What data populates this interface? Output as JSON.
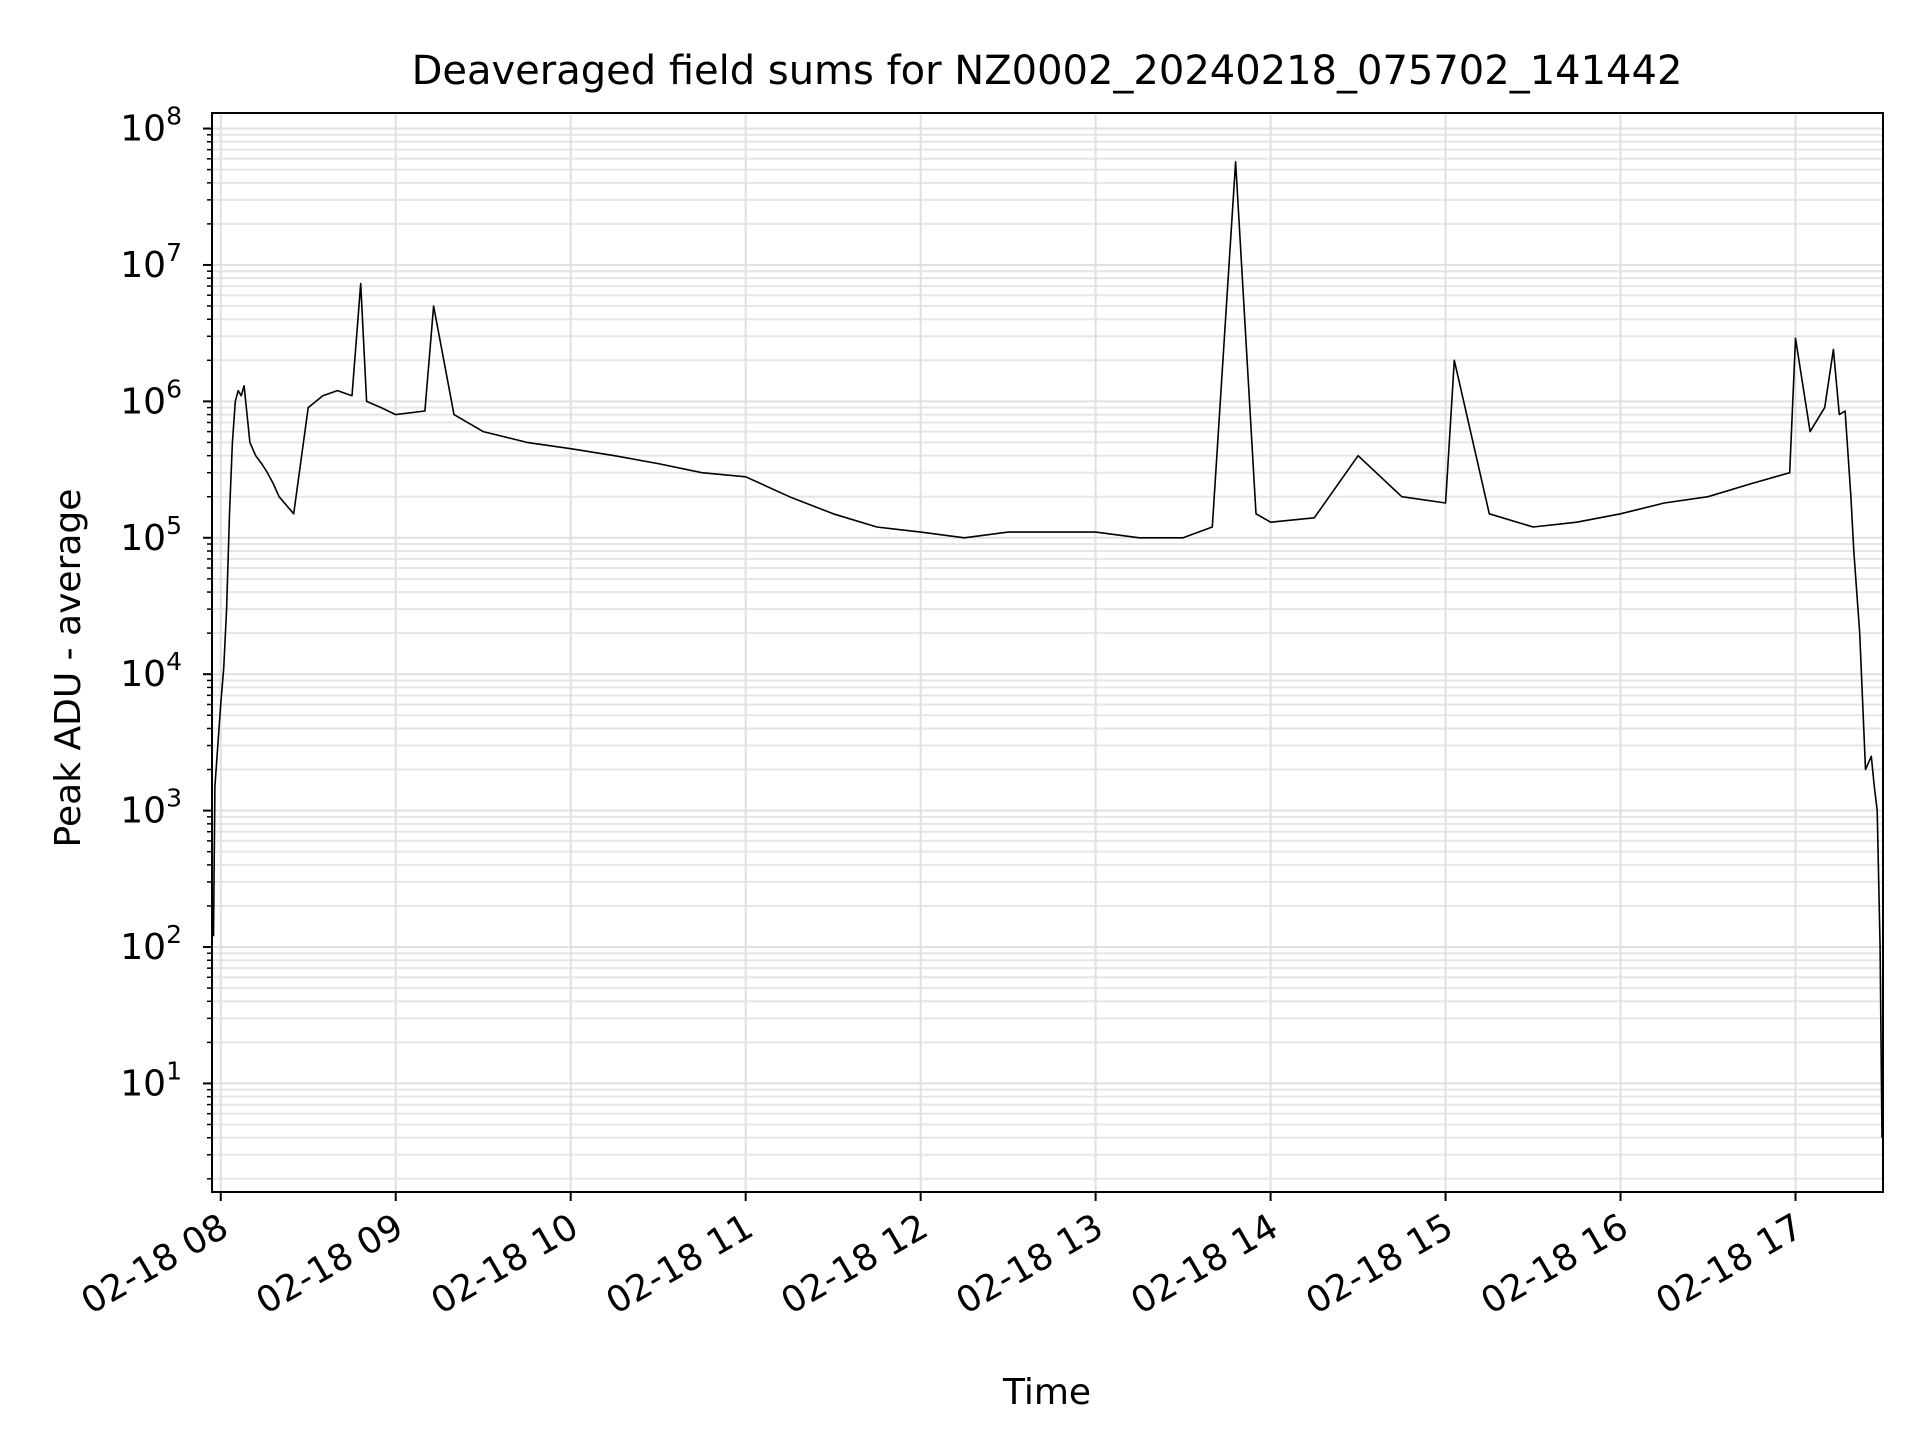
{
  "chart_data": {
    "type": "line",
    "title": "Deaveraged field sums for NZ0002_20240218_075702_141442",
    "xlabel": "Time",
    "ylabel": "Peak ADU - average",
    "yscale": "log",
    "ylim": [
      1.6,
      130000000
    ],
    "xlim": [
      "2024-02-18 07:57:00",
      "2024-02-18 17:30:00"
    ],
    "grid": "major and minor",
    "line_color": "#000000",
    "x_ticks": [
      {
        "value": "2024-02-18 08:00",
        "label": "02-18 08"
      },
      {
        "value": "2024-02-18 09:00",
        "label": "02-18 09"
      },
      {
        "value": "2024-02-18 10:00",
        "label": "02-18 10"
      },
      {
        "value": "2024-02-18 11:00",
        "label": "02-18 11"
      },
      {
        "value": "2024-02-18 12:00",
        "label": "02-18 12"
      },
      {
        "value": "2024-02-18 13:00",
        "label": "02-18 13"
      },
      {
        "value": "2024-02-18 14:00",
        "label": "02-18 14"
      },
      {
        "value": "2024-02-18 15:00",
        "label": "02-18 15"
      },
      {
        "value": "2024-02-18 16:00",
        "label": "02-18 16"
      },
      {
        "value": "2024-02-18 17:00",
        "label": "02-18 17"
      }
    ],
    "y_ticks": [
      {
        "value": 10,
        "base": "10",
        "exp": "1"
      },
      {
        "value": 100,
        "base": "10",
        "exp": "2"
      },
      {
        "value": 1000,
        "base": "10",
        "exp": "3"
      },
      {
        "value": 10000,
        "base": "10",
        "exp": "4"
      },
      {
        "value": 100000,
        "base": "10",
        "exp": "5"
      },
      {
        "value": 1000000,
        "base": "10",
        "exp": "6"
      },
      {
        "value": 10000000,
        "base": "10",
        "exp": "7"
      },
      {
        "value": 100000000,
        "base": "10",
        "exp": "8"
      }
    ],
    "series": [
      {
        "x": [
          "2024-02-18 07:57:30",
          "2024-02-18 07:58:00",
          "2024-02-18 07:59:00",
          "2024-02-18 08:00:00",
          "2024-02-18 08:01:00",
          "2024-02-18 08:02:00",
          "2024-02-18 08:03:00",
          "2024-02-18 08:04:00",
          "2024-02-18 08:05:00",
          "2024-02-18 08:06:00",
          "2024-02-18 08:07:00",
          "2024-02-18 08:08:00",
          "2024-02-18 08:10:00",
          "2024-02-18 08:12:00",
          "2024-02-18 08:14:00",
          "2024-02-18 08:16:00",
          "2024-02-18 08:18:00",
          "2024-02-18 08:20:00",
          "2024-02-18 08:25:00",
          "2024-02-18 08:30:00",
          "2024-02-18 08:35:00",
          "2024-02-18 08:40:00",
          "2024-02-18 08:45:00",
          "2024-02-18 08:48:00",
          "2024-02-18 08:50:00",
          "2024-02-18 08:55:00",
          "2024-02-18 09:00:00",
          "2024-02-18 09:10:00",
          "2024-02-18 09:13:00",
          "2024-02-18 09:20:00",
          "2024-02-18 09:30:00",
          "2024-02-18 09:45:00",
          "2024-02-18 10:00:00",
          "2024-02-18 10:15:00",
          "2024-02-18 10:30:00",
          "2024-02-18 10:45:00",
          "2024-02-18 11:00:00",
          "2024-02-18 11:15:00",
          "2024-02-18 11:30:00",
          "2024-02-18 11:45:00",
          "2024-02-18 12:00:00",
          "2024-02-18 12:15:00",
          "2024-02-18 12:30:00",
          "2024-02-18 12:45:00",
          "2024-02-18 13:00:00",
          "2024-02-18 13:15:00",
          "2024-02-18 13:30:00",
          "2024-02-18 13:40:00",
          "2024-02-18 13:48:00",
          "2024-02-18 13:55:00",
          "2024-02-18 14:00:00",
          "2024-02-18 14:15:00",
          "2024-02-18 14:30:00",
          "2024-02-18 14:45:00",
          "2024-02-18 15:00:00",
          "2024-02-18 15:03:00",
          "2024-02-18 15:15:00",
          "2024-02-18 15:30:00",
          "2024-02-18 15:45:00",
          "2024-02-18 16:00:00",
          "2024-02-18 16:15:00",
          "2024-02-18 16:30:00",
          "2024-02-18 16:45:00",
          "2024-02-18 16:58:00",
          "2024-02-18 17:00:00",
          "2024-02-18 17:05:00",
          "2024-02-18 17:10:00",
          "2024-02-18 17:13:00",
          "2024-02-18 17:15:00",
          "2024-02-18 17:17:00",
          "2024-02-18 17:19:00",
          "2024-02-18 17:20:00",
          "2024-02-18 17:22:00",
          "2024-02-18 17:24:00",
          "2024-02-18 17:26:00",
          "2024-02-18 17:27:00",
          "2024-02-18 17:28:00",
          "2024-02-18 17:29:00",
          "2024-02-18 17:29:40"
        ],
        "y": [
          120,
          1500,
          3000,
          6000,
          11000,
          30000,
          150000,
          500000,
          1000000,
          1200000,
          1100000,
          1300000,
          500000,
          400000,
          350000,
          300000,
          250000,
          200000,
          150000,
          900000,
          1100000,
          1200000,
          1100000,
          7300000,
          1000000,
          900000,
          800000,
          850000,
          5000000,
          800000,
          600000,
          500000,
          450000,
          400000,
          350000,
          300000,
          280000,
          200000,
          150000,
          120000,
          110000,
          100000,
          110000,
          110000,
          110000,
          100000,
          100000,
          120000,
          57000000,
          150000,
          130000,
          140000,
          400000,
          200000,
          180000,
          2000000,
          150000,
          120000,
          130000,
          150000,
          180000,
          200000,
          250000,
          300000,
          2900000,
          600000,
          900000,
          2400000,
          800000,
          850000,
          200000,
          80000,
          20000,
          2000,
          2500,
          1500,
          1000,
          100,
          4
        ]
      }
    ]
  }
}
